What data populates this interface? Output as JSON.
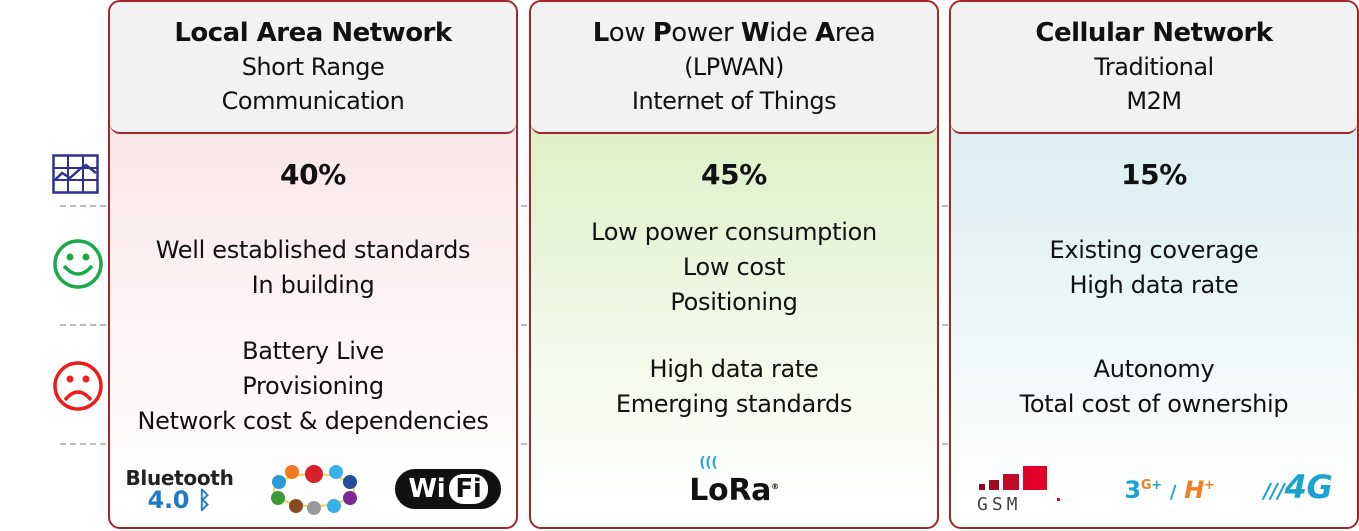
{
  "columns": [
    {
      "title": "Local Area Network",
      "subtitle1": "Short Range",
      "subtitle2": "Communication",
      "share": "40%",
      "pros": [
        "Well established standards",
        "In building"
      ],
      "cons": [
        "Battery Live",
        "Provisioning",
        "Network cost & dependencies"
      ],
      "logos": [
        "Bluetooth 4.0",
        "ZigBee",
        "WiFi"
      ]
    },
    {
      "title_parts": [
        "L",
        "ow ",
        "P",
        "ower ",
        "W",
        "ide ",
        "A",
        "rea"
      ],
      "subtitle1": "(LPWAN)",
      "subtitle2": "Internet of Things",
      "share": "45%",
      "pros": [
        "Low power consumption",
        "Low cost",
        "Positioning"
      ],
      "cons": [
        "High data rate",
        "Emerging standards"
      ],
      "logos": [
        "LoRa"
      ]
    },
    {
      "title": "Cellular Network",
      "subtitle1": "Traditional",
      "subtitle2": "M2M",
      "share": "15%",
      "pros": [
        "Existing coverage",
        "High data rate"
      ],
      "cons": [
        "Autonomy",
        "Total cost of ownership"
      ],
      "logos": [
        "GSM",
        "3G+ / H+",
        "4G"
      ]
    }
  ],
  "row_icons": [
    "chart-icon",
    "smiley-happy-icon",
    "smiley-sad-icon"
  ],
  "colors": {
    "border": "#a3262b",
    "lan": "#f9dfe0",
    "lpwan": "#d3ebb5",
    "cellular": "#cfe8ec",
    "happy": "#1aaa4a",
    "sad": "#ee1c1c",
    "chart": "#2e3192"
  }
}
